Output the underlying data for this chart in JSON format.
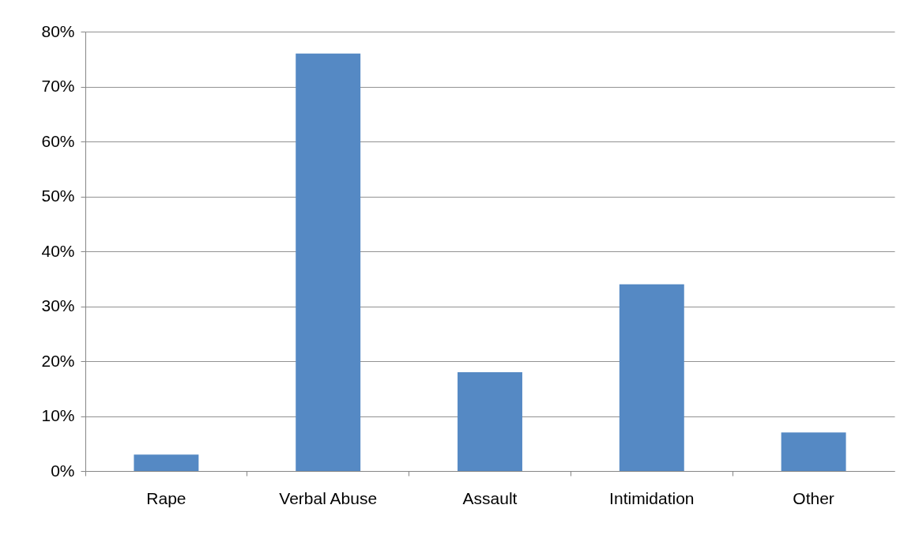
{
  "chart_data": {
    "type": "bar",
    "categories": [
      "Rape",
      "Verbal Abuse",
      "Assault",
      "Intimidation",
      "Other"
    ],
    "values": [
      3,
      76,
      18,
      34,
      7
    ],
    "color": "#5589c4",
    "ylim": [
      0,
      80
    ],
    "yticks": [
      {
        "value": 0,
        "label": "0%"
      },
      {
        "value": 10,
        "label": "10%"
      },
      {
        "value": 20,
        "label": "20%"
      },
      {
        "value": 30,
        "label": "30%"
      },
      {
        "value": 40,
        "label": "40%"
      },
      {
        "value": 50,
        "label": "50%"
      },
      {
        "value": 60,
        "label": "60%"
      },
      {
        "value": 70,
        "label": "70%"
      },
      {
        "value": 80,
        "label": "80%"
      }
    ],
    "grid": "y"
  }
}
